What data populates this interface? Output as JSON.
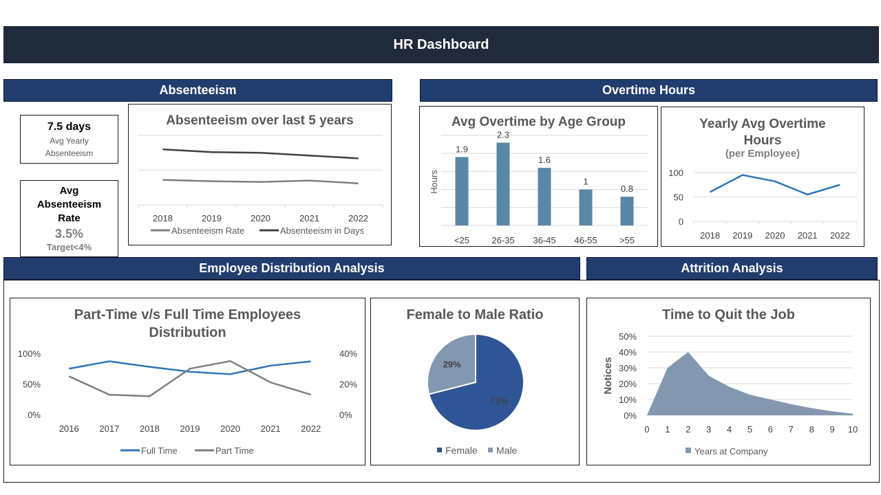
{
  "header": {
    "title": "HR Dashboard"
  },
  "sections": {
    "absenteeism": "Absenteeism",
    "overtime": "Overtime Hours",
    "distribution": "Employee Distribution Analysis",
    "attrition": "Attrition Analysis"
  },
  "kpis": {
    "days_value": "7.5 days",
    "days_label": "Avg Yearly Absenteeism",
    "rate_title": "Avg Absenteeism Rate",
    "rate_value": "3.5%",
    "rate_target": "Target<4%"
  },
  "colors": {
    "banner": "#1f2a3a",
    "section": "#213d6e",
    "bar": "#5b87a6",
    "line_blue": "#2e75b6",
    "dark_gray": "#404040",
    "mid_gray": "#7f7f7f",
    "female": "#2f5597",
    "male": "#8497b0",
    "area": "#8497b0"
  },
  "chart_data": [
    {
      "id": "absenteeism_trend",
      "type": "line",
      "title": "Absenteeism over last 5 years",
      "categories": [
        "2018",
        "2019",
        "2020",
        "2021",
        "2022"
      ],
      "series": [
        {
          "name": "Absenteeism Rate",
          "values": [
            3.6,
            3.4,
            3.3,
            3.5,
            3.1
          ],
          "color": "#7f7f7f"
        },
        {
          "name": "Absenteeism in Days",
          "values": [
            8.0,
            7.6,
            7.5,
            7.1,
            6.7
          ],
          "color": "#404040"
        }
      ],
      "ylim": [
        0,
        10
      ],
      "grid": true,
      "legend": "bottom"
    },
    {
      "id": "overtime_by_age",
      "type": "bar",
      "title": "Avg Overtime by Age Group",
      "categories": [
        "<25",
        "26-35",
        "36-45",
        "46-55",
        ">55"
      ],
      "values": [
        1.9,
        2.3,
        1.6,
        1,
        0.8
      ],
      "data_labels": [
        "1.9",
        "2.3",
        "1.6",
        "1",
        "0.8"
      ],
      "ylabel": "Hours",
      "ylim": [
        0,
        2.5
      ],
      "grid": true
    },
    {
      "id": "yearly_overtime",
      "type": "line",
      "title": "Yearly Avg Overtime Hours",
      "subtitle": "(per Employee)",
      "categories": [
        "2018",
        "2019",
        "2020",
        "2021",
        "2022"
      ],
      "values": [
        60,
        95,
        82,
        55,
        75
      ],
      "yticks": [
        "0",
        "50",
        "100"
      ],
      "ylim": [
        0,
        100
      ],
      "grid": true
    },
    {
      "id": "part_full_time",
      "type": "line",
      "title": "Part-Time v/s Full Time Employees Distribution",
      "categories": [
        "2016",
        "2017",
        "2018",
        "2019",
        "2020",
        "2021",
        "2022"
      ],
      "series": [
        {
          "name": "Full Time",
          "axis": "left",
          "values": [
            75,
            87,
            78,
            70,
            66,
            80,
            87
          ],
          "color": "#2e75b6"
        },
        {
          "name": "Part Time",
          "axis": "right",
          "values": [
            25,
            13,
            12,
            30,
            35,
            21,
            13
          ],
          "color": "#7f7f7f"
        }
      ],
      "yticks_left": [
        "0%",
        "50%",
        "100%"
      ],
      "yticks_right": [
        "0%",
        "20%",
        "40%"
      ],
      "ylim_left": [
        0,
        100
      ],
      "ylim_right": [
        0,
        40
      ],
      "legend": "bottom"
    },
    {
      "id": "gender_ratio",
      "type": "pie",
      "title": "Female to Male Ratio",
      "slices": [
        {
          "name": "Female",
          "value": 71,
          "label": "71%",
          "color": "#2f5597"
        },
        {
          "name": "Male",
          "value": 29,
          "label": "29%",
          "color": "#8497b0"
        }
      ],
      "legend": "bottom"
    },
    {
      "id": "time_to_quit",
      "type": "area",
      "title": "Time to Quit the Job",
      "x": [
        0,
        1,
        2,
        3,
        4,
        5,
        6,
        7,
        8,
        9,
        10
      ],
      "values": [
        0,
        30,
        40,
        25,
        18,
        13,
        10,
        7,
        4.5,
        2.5,
        1
      ],
      "series_name": "Years at Company",
      "ylabel": "Notices",
      "yticks": [
        "0%",
        "10%",
        "20%",
        "30%",
        "40%",
        "50%"
      ],
      "ylim": [
        0,
        50
      ],
      "grid": true,
      "legend": "bottom"
    }
  ]
}
